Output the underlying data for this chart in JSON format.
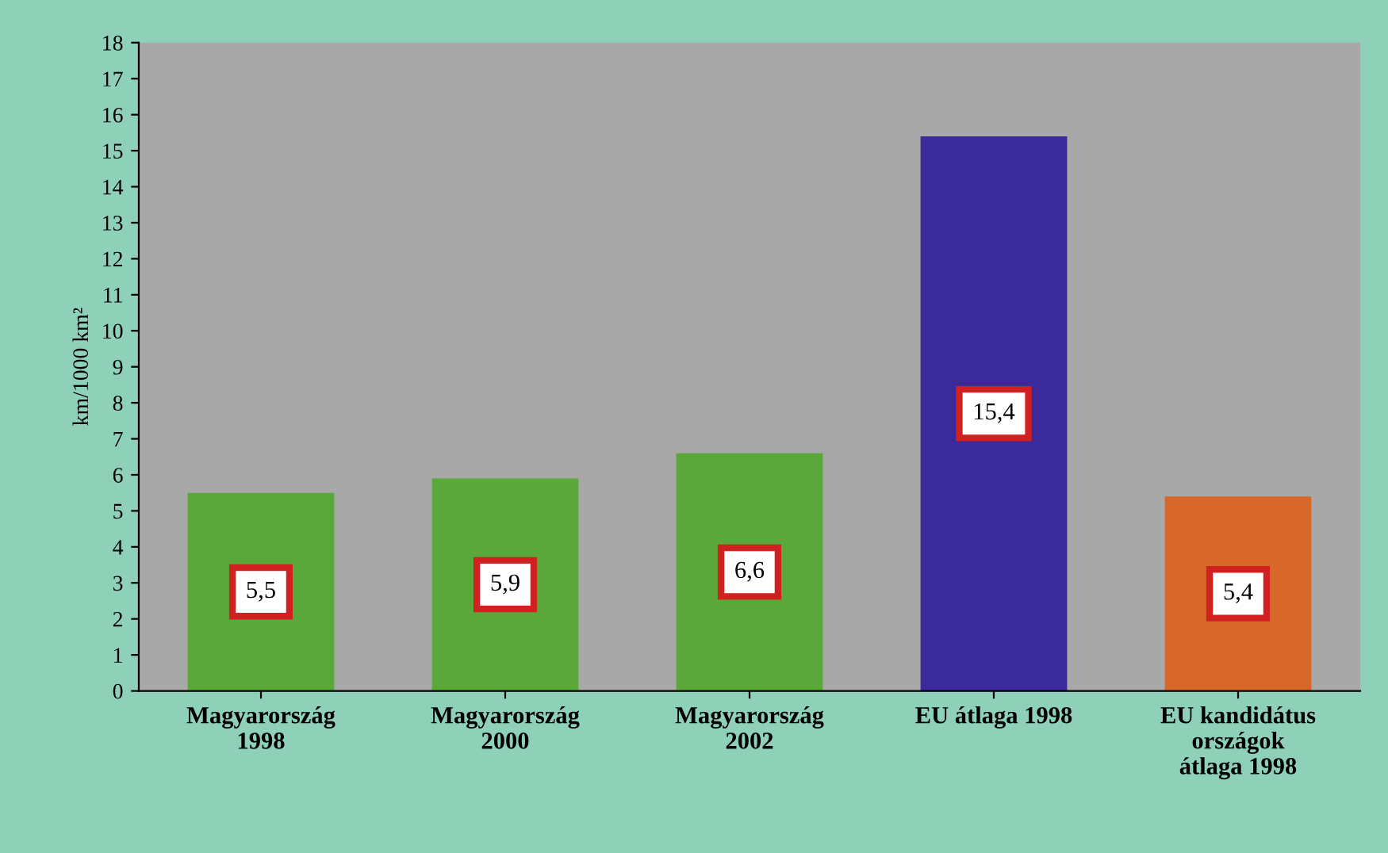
{
  "chart_data": {
    "type": "bar",
    "ylabel": "km/1000 km²",
    "categories": [
      "Magyarország\n1998",
      "Magyarország\n2000",
      "Magyarország\n2002",
      "EU átlaga 1998",
      "EU kandidátus\nországok\nátlaga 1998"
    ],
    "values": [
      5.5,
      5.9,
      6.6,
      15.4,
      5.4
    ],
    "colors": [
      "#5aa83a",
      "#5aa83a",
      "#5aa83a",
      "#3a2a9a",
      "#d8682a"
    ],
    "value_labels": [
      "5,5",
      "5,9",
      "6,6",
      "15,4",
      "5,4"
    ],
    "ylim": [
      0,
      18
    ],
    "yticks": [
      0,
      1,
      2,
      3,
      4,
      5,
      6,
      7,
      8,
      9,
      10,
      11,
      12,
      13,
      14,
      15,
      16,
      17,
      18
    ],
    "grid": false
  }
}
